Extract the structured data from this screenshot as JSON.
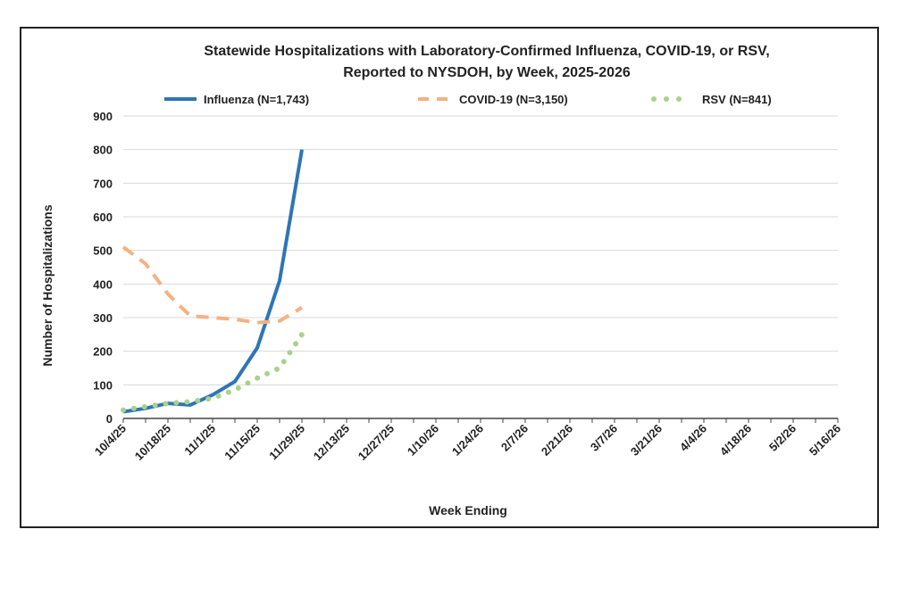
{
  "chart_data": {
    "type": "line",
    "title_lines": [
      "Statewide Hospitalizations with Laboratory-Confirmed  Influenza, COVID-19, or RSV,",
      "Reported to NYSDOH, by Week, 2025-2026"
    ],
    "xlabel": "Week Ending",
    "ylabel": "Number of Hospitalizations",
    "ylim": [
      0,
      900
    ],
    "yticks": [
      0,
      100,
      200,
      300,
      400,
      500,
      600,
      700,
      800,
      900
    ],
    "grid": true,
    "legend_position": "top",
    "x_tick_labels": [
      "10/4/25",
      "10/18/25",
      "11/1/25",
      "11/15/25",
      "11/29/25",
      "12/13/25",
      "12/27/25",
      "1/10/26",
      "1/24/26",
      "2/7/26",
      "2/21/26",
      "3/7/26",
      "3/21/26",
      "4/4/26",
      "4/18/26",
      "5/2/26",
      "5/16/26"
    ],
    "num_weeks": 33,
    "series": [
      {
        "name": "Influenza (N=1,743)",
        "style": "solid",
        "color": "#2e75b6",
        "values": [
          20,
          30,
          45,
          40,
          70,
          110,
          210,
          410,
          800
        ]
      },
      {
        "name": "COVID-19 (N=3,150)",
        "style": "dashed",
        "color": "#f4b183",
        "values": [
          510,
          460,
          370,
          305,
          300,
          295,
          285,
          290,
          330
        ]
      },
      {
        "name": "RSV (N=841)",
        "style": "dotted",
        "color": "#a9d18e",
        "values": [
          25,
          35,
          45,
          50,
          60,
          85,
          120,
          150,
          250
        ]
      }
    ]
  }
}
